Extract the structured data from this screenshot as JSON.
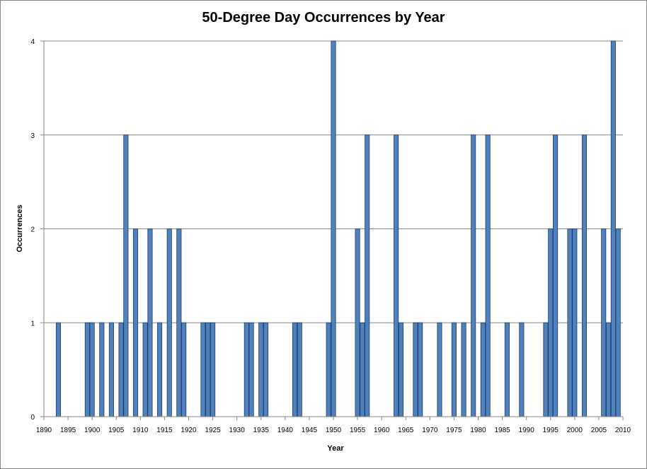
{
  "chart_data": {
    "type": "bar",
    "title": "50-Degree Day Occurrences by Year",
    "xlabel": "Year",
    "ylabel": "Occurrences",
    "xlim": [
      1890,
      2010
    ],
    "ylim": [
      0,
      4
    ],
    "x_ticks": [
      1890,
      1895,
      1900,
      1905,
      1910,
      1915,
      1920,
      1925,
      1930,
      1935,
      1940,
      1945,
      1950,
      1955,
      1960,
      1965,
      1970,
      1975,
      1980,
      1985,
      1990,
      1995,
      2000,
      2005,
      2010
    ],
    "y_ticks": [
      0,
      1,
      2,
      3,
      4
    ],
    "grid": "horizontal",
    "legend": "none",
    "bar_color": "#4F81BD",
    "bar_edge_color": "#1F3A66",
    "x": [
      1893,
      1899,
      1900,
      1902,
      1904,
      1906,
      1907,
      1909,
      1911,
      1912,
      1914,
      1916,
      1918,
      1919,
      1923,
      1924,
      1925,
      1932,
      1933,
      1935,
      1936,
      1942,
      1943,
      1949,
      1950,
      1955,
      1956,
      1957,
      1963,
      1964,
      1967,
      1968,
      1972,
      1975,
      1977,
      1979,
      1981,
      1982,
      1986,
      1989,
      1994,
      1995,
      1996,
      1999,
      2000,
      2002,
      2006,
      2007,
      2008,
      2009
    ],
    "values": [
      1,
      1,
      1,
      1,
      1,
      1,
      3,
      2,
      1,
      2,
      1,
      2,
      2,
      1,
      1,
      1,
      1,
      1,
      1,
      1,
      1,
      1,
      1,
      1,
      4,
      2,
      1,
      3,
      3,
      1,
      1,
      1,
      1,
      1,
      1,
      3,
      1,
      3,
      1,
      1,
      1,
      2,
      3,
      2,
      2,
      3,
      2,
      1,
      4,
      2
    ]
  }
}
